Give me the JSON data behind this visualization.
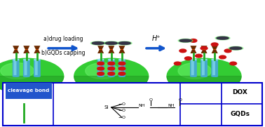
{
  "bg_color": "#ffffff",
  "blue_border": "#0000cc",
  "blue_fill": "#2255cc",
  "sphere_green": "#33cc33",
  "sphere_light_green": "#66ee66",
  "cylinder_teal": "#44aacc",
  "cylinder_light": "#88ddee",
  "linker_brown": "#6b2a00",
  "linker_dark": "#8b3a00",
  "gqd_dark": "#333344",
  "gqd_glow": "#66ee66",
  "dox_red": "#cc1111",
  "arrow_blue": "#1155cc",
  "text_label1": "a)drug loading",
  "text_label2": "b)GQDs capping",
  "text_hplus": "H⁺",
  "text_cleavage": "cleavage bond",
  "text_dox": "DOX",
  "text_gqds": "GQDs"
}
